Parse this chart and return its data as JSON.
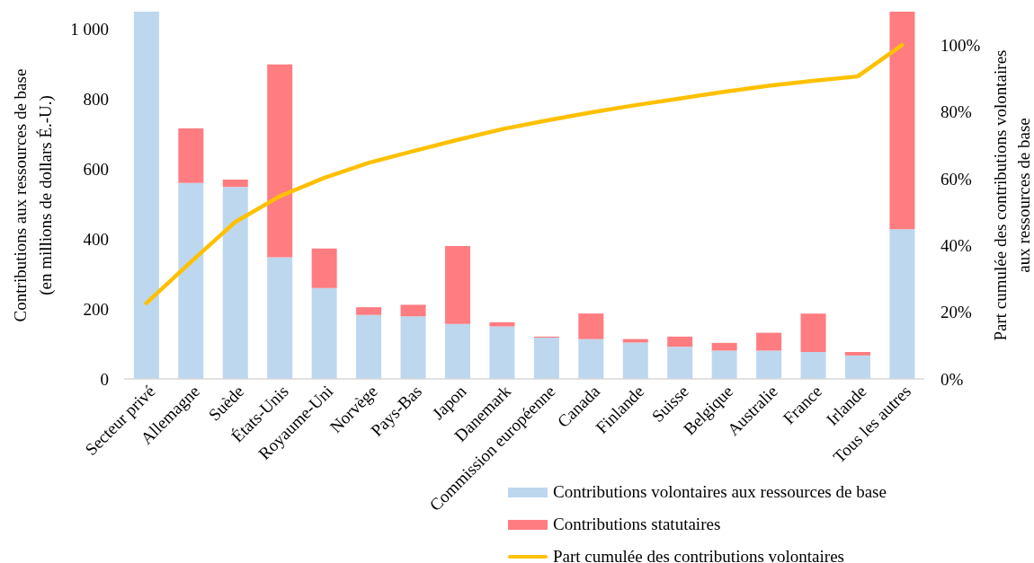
{
  "chart_data": {
    "type": "bar",
    "stacked": true,
    "categories": [
      "Secteur privé",
      "Allemagne",
      "Suède",
      "États-Unis",
      "Royaume-Uni",
      "Norvège",
      "Pays-Bas",
      "Japon",
      "Danemark",
      "Commission européenne",
      "Canada",
      "Finlande",
      "Suisse",
      "Belgique",
      "Australie",
      "France",
      "Irlande",
      "Tous les autres"
    ],
    "series": [
      {
        "name": "Contributions volontaires aux ressources de base",
        "color": "#bdd7ee",
        "values": [
          1050,
          560,
          549,
          348,
          260,
          183,
          179,
          157,
          150,
          118,
          114,
          104,
          92,
          81,
          81,
          77,
          67,
          428
        ]
      },
      {
        "name": "Contributions statutaires",
        "color": "#ff7c80",
        "values": [
          null,
          156,
          21,
          551,
          113,
          22,
          33,
          223,
          12,
          3,
          73,
          10,
          29,
          22,
          51,
          110,
          10,
          622
        ]
      },
      {
        "name": "Part cumulée des contributions volontaires",
        "type": "line",
        "axis": "y2",
        "color": "#ffc000",
        "values": [
          22.7,
          35,
          47,
          54.7,
          60.2,
          64.7,
          68.2,
          71.6,
          74.8,
          77.4,
          79.8,
          82,
          84,
          86,
          87.8,
          89.3,
          90.6,
          100
        ]
      }
    ],
    "ylabel": "Contributions aux ressources de base\n(en millions de dollars É.-U.)",
    "y2label": "Part cumulée des contributions volontaires\naux ressources de base",
    "ylim": [
      0,
      1050
    ],
    "yticks": [
      0,
      200,
      400,
      600,
      800,
      {
        "value": 1000,
        "label": "1 000"
      }
    ],
    "y2lim": [
      0,
      110
    ],
    "y2ticks": [
      {
        "value": 0,
        "label": "0%"
      },
      {
        "value": 20,
        "label": "20%"
      },
      {
        "value": 40,
        "label": "40%"
      },
      {
        "value": 60,
        "label": "60%"
      },
      {
        "value": 80,
        "label": "80%"
      },
      {
        "value": 100,
        "label": "100%"
      }
    ],
    "legend": "bottom right"
  }
}
